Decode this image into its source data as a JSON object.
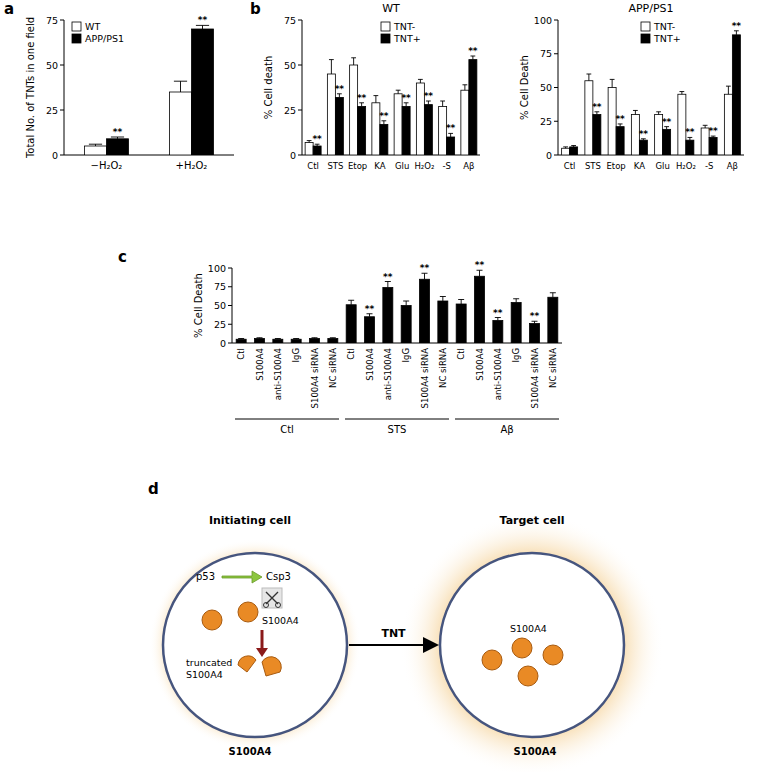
{
  "chart_data": [
    {
      "type": "bar",
      "annotations": [
        "a"
      ],
      "y_label": "Total No. of TNTs in one field",
      "categories": [
        "−H₂O₂",
        "+H₂O₂"
      ],
      "series": [
        {
          "name": "WT",
          "color": "#ffffff",
          "values": [
            5,
            35
          ],
          "errors": [
            1,
            6
          ]
        },
        {
          "name": "APP/PS1",
          "color": "#000000",
          "values": [
            9,
            70
          ],
          "errors": [
            1,
            2
          ],
          "significance": [
            "**",
            "**"
          ]
        }
      ],
      "ylim": [
        0,
        75
      ],
      "yticks": [
        0,
        25,
        50,
        75
      ],
      "legend": "top-left"
    },
    {
      "type": "bar",
      "annotations": [
        "b"
      ],
      "title": "WT",
      "y_label": "% Cell death",
      "categories": [
        "Ctl",
        "STS",
        "Etop",
        "KA",
        "Glu",
        "H₂O₂",
        "-S",
        "Aβ"
      ],
      "series": [
        {
          "name": "TNT-",
          "color": "#ffffff",
          "values": [
            7,
            45,
            50,
            29,
            34,
            40,
            27,
            36
          ],
          "errors": [
            1,
            8,
            4,
            4,
            2,
            2,
            3,
            3
          ]
        },
        {
          "name": "TNT+",
          "color": "#000000",
          "values": [
            5,
            32,
            27,
            17,
            27,
            28,
            10,
            53
          ],
          "errors": [
            1,
            2,
            2,
            2,
            2,
            2,
            2,
            2
          ],
          "significance": [
            "**",
            "**",
            "**",
            "**",
            "**",
            "**",
            "**",
            "**"
          ]
        }
      ],
      "ylim": [
        0,
        75
      ],
      "yticks": [
        0,
        25,
        50,
        75
      ],
      "legend": "top"
    },
    {
      "type": "bar",
      "title": "APP/PS1",
      "y_label": "% Cell Death",
      "categories": [
        "Ctl",
        "STS",
        "Etop",
        "KA",
        "Glu",
        "H₂O₂",
        "-S",
        "Aβ"
      ],
      "series": [
        {
          "name": "TNT-",
          "color": "#ffffff",
          "values": [
            5,
            55,
            50,
            30,
            30,
            45,
            20,
            45
          ],
          "errors": [
            1,
            5,
            6,
            3,
            2,
            2,
            2,
            6
          ]
        },
        {
          "name": "TNT+",
          "color": "#000000",
          "values": [
            6,
            30,
            21,
            11,
            19,
            11,
            13,
            89
          ],
          "errors": [
            1,
            2,
            2,
            1,
            2,
            2,
            1,
            3
          ],
          "significance": [
            null,
            "**",
            "**",
            "**",
            "**",
            "**",
            "**",
            "**"
          ]
        }
      ],
      "ylim": [
        0,
        100
      ],
      "yticks": [
        0,
        25,
        50,
        75,
        100
      ],
      "legend": "top"
    },
    {
      "type": "bar",
      "annotations": [
        "c"
      ],
      "y_label": "% Cell Death",
      "categories": [
        "Ctl",
        "S100A4",
        "anti-S100A4",
        "IgG",
        "S100A4 siRNA",
        "NC siRNA",
        "Ctl",
        "S100A4",
        "anti-S100A4",
        "IgG",
        "S100A4 siRNA",
        "NC siRNA",
        "Ctl",
        "S100A4",
        "anti-S100A4",
        "IgG",
        "S100A4 siRNA",
        "NC siRNA"
      ],
      "groups": [
        "Ctl",
        "STS",
        "Aβ"
      ],
      "series": [
        {
          "color": "#000000",
          "values": [
            5,
            6,
            5,
            5,
            6,
            6,
            51,
            35,
            74,
            50,
            85,
            56,
            52,
            89,
            30,
            54,
            26,
            61
          ],
          "errors": [
            1,
            1,
            1,
            1,
            1,
            1,
            6,
            4,
            8,
            6,
            8,
            6,
            6,
            8,
            4,
            5,
            3,
            6
          ],
          "significance": [
            null,
            null,
            null,
            null,
            null,
            null,
            null,
            "**",
            "**",
            null,
            "**",
            null,
            null,
            "**",
            "**",
            null,
            "**",
            null
          ]
        }
      ],
      "ylim": [
        0,
        100
      ],
      "yticks": [
        0,
        25,
        50,
        75,
        100
      ]
    }
  ],
  "diagram": {
    "panel": "d",
    "initiating_cell": {
      "title": "Initiating cell",
      "p53": "p53",
      "csp3": "Csp3",
      "protein": "S100A4",
      "truncated": "truncated S100A4",
      "membrane_label": "S100A4"
    },
    "connector": "TNT",
    "target_cell": {
      "title": "Target cell",
      "protein": "S100A4",
      "membrane_label": "S100A4"
    }
  }
}
